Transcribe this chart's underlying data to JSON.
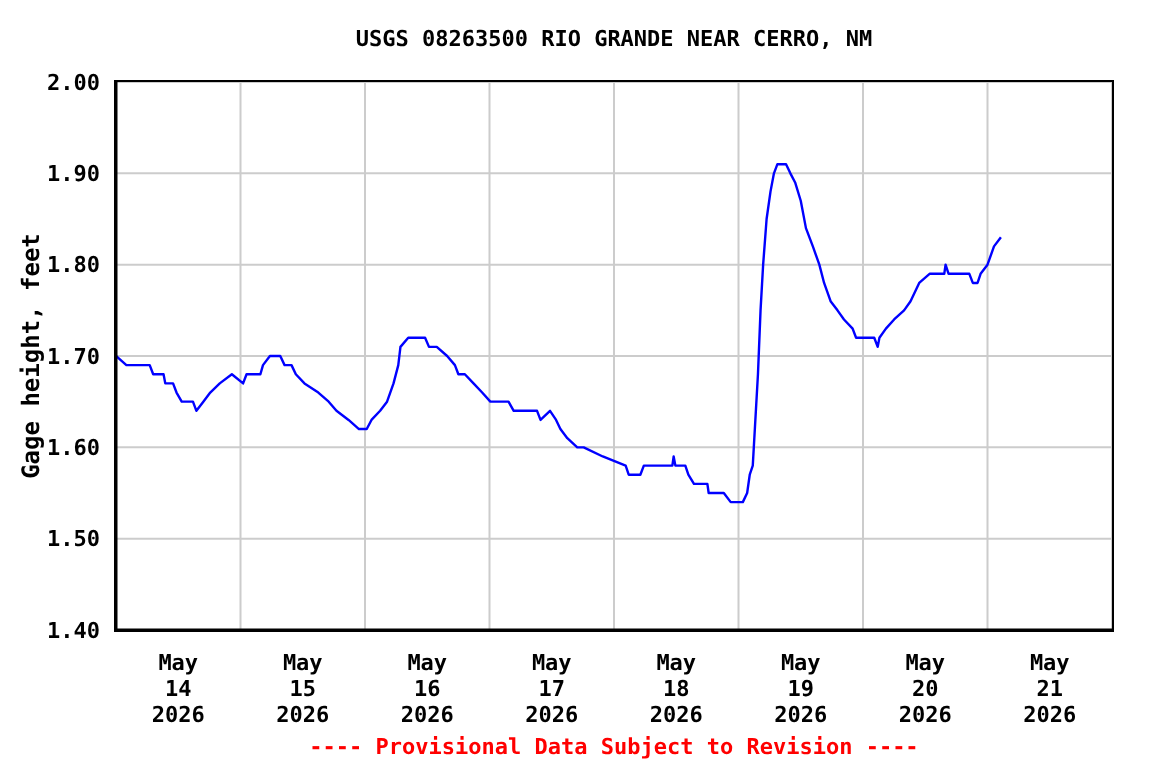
{
  "chart_data": {
    "type": "line",
    "title": "USGS 08263500 RIO GRANDE NEAR CERRO, NM",
    "ylabel": "Gage height, feet",
    "annotations": [
      "---- Provisional Data Subject to Revision ----"
    ],
    "xlim": [
      "2026-05-14T00:00",
      "2026-05-22T00:00"
    ],
    "xticks": [
      {
        "value": "2026-05-14T00:00",
        "label": null
      },
      {
        "value": "2026-05-14T12:00",
        "label": "May\n14\n2026"
      },
      {
        "value": "2026-05-15T00:00",
        "label": null
      },
      {
        "value": "2026-05-15T12:00",
        "label": "May\n15\n2026"
      },
      {
        "value": "2026-05-16T00:00",
        "label": null
      },
      {
        "value": "2026-05-16T12:00",
        "label": "May\n16\n2026"
      },
      {
        "value": "2026-05-17T00:00",
        "label": null
      },
      {
        "value": "2026-05-17T12:00",
        "label": "May\n17\n2026"
      },
      {
        "value": "2026-05-18T00:00",
        "label": null
      },
      {
        "value": "2026-05-18T12:00",
        "label": "May\n18\n2026"
      },
      {
        "value": "2026-05-19T00:00",
        "label": null
      },
      {
        "value": "2026-05-19T12:00",
        "label": "May\n19\n2026"
      },
      {
        "value": "2026-05-20T00:00",
        "label": null
      },
      {
        "value": "2026-05-20T12:00",
        "label": "May\n20\n2026"
      },
      {
        "value": "2026-05-21T00:00",
        "label": null
      },
      {
        "value": "2026-05-21T12:00",
        "label": "May\n21\n2026"
      },
      {
        "value": "2026-05-22T00:00",
        "label": null
      }
    ],
    "ylim": [
      1.4,
      2.0
    ],
    "yticks": [
      {
        "value": 1.4,
        "label": "1.40"
      },
      {
        "value": 1.5,
        "label": "1.50"
      },
      {
        "value": 1.6,
        "label": "1.60"
      },
      {
        "value": 1.7,
        "label": "1.70"
      },
      {
        "value": 1.8,
        "label": "1.80"
      },
      {
        "value": 1.9,
        "label": "1.90"
      },
      {
        "value": 2.0,
        "label": "2.00"
      }
    ],
    "grid": true,
    "marker": "none",
    "line_style": "solid",
    "series": [
      {
        "color": "#0000ff",
        "x": [
          "2026-05-14T00:00",
          "2026-05-14T02:00",
          "2026-05-14T06:30",
          "2026-05-14T07:10",
          "2026-05-14T09:10",
          "2026-05-14T09:30",
          "2026-05-14T11:00",
          "2026-05-14T11:40",
          "2026-05-14T12:40",
          "2026-05-14T14:50",
          "2026-05-14T15:30",
          "2026-05-14T16:50",
          "2026-05-14T18:10",
          "2026-05-14T20:00",
          "2026-05-14T22:20",
          "2026-05-15T00:30",
          "2026-05-15T01:10",
          "2026-05-15T03:50",
          "2026-05-15T04:20",
          "2026-05-15T05:40",
          "2026-05-15T07:40",
          "2026-05-15T08:30",
          "2026-05-15T09:50",
          "2026-05-15T10:40",
          "2026-05-15T12:20",
          "2026-05-15T15:00",
          "2026-05-15T17:00",
          "2026-05-15T18:30",
          "2026-05-15T20:50",
          "2026-05-15T22:50",
          "2026-05-16T00:20",
          "2026-05-16T01:15",
          "2026-05-16T02:55",
          "2026-05-16T04:15",
          "2026-05-16T05:30",
          "2026-05-16T06:25",
          "2026-05-16T06:50",
          "2026-05-16T08:20",
          "2026-05-16T11:35",
          "2026-05-16T12:20",
          "2026-05-16T13:50",
          "2026-05-16T15:50",
          "2026-05-16T17:20",
          "2026-05-16T18:00",
          "2026-05-16T19:15",
          "2026-05-16T20:55",
          "2026-05-16T22:35",
          "2026-05-17T00:10",
          "2026-05-17T03:40",
          "2026-05-17T04:40",
          "2026-05-17T09:10",
          "2026-05-17T09:50",
          "2026-05-17T11:40",
          "2026-05-17T12:50",
          "2026-05-17T13:40",
          "2026-05-17T15:00",
          "2026-05-17T16:55",
          "2026-05-17T18:10",
          "2026-05-17T21:50",
          "2026-05-18T02:15",
          "2026-05-18T02:50",
          "2026-05-18T05:05",
          "2026-05-18T05:45",
          "2026-05-18T11:15",
          "2026-05-18T11:30",
          "2026-05-18T11:50",
          "2026-05-18T13:45",
          "2026-05-18T14:20",
          "2026-05-18T15:25",
          "2026-05-18T18:00",
          "2026-05-18T18:15",
          "2026-05-18T21:10",
          "2026-05-18T22:30",
          "2026-05-19T00:50",
          "2026-05-19T01:40",
          "2026-05-19T02:10",
          "2026-05-19T02:45",
          "2026-05-19T03:15",
          "2026-05-19T03:45",
          "2026-05-19T04:15",
          "2026-05-19T04:45",
          "2026-05-19T05:25",
          "2026-05-19T06:10",
          "2026-05-19T06:50",
          "2026-05-19T07:30",
          "2026-05-19T09:10",
          "2026-05-19T10:00",
          "2026-05-19T10:55",
          "2026-05-19T12:00",
          "2026-05-19T13:00",
          "2026-05-19T14:20",
          "2026-05-19T15:35",
          "2026-05-19T16:30",
          "2026-05-19T17:45",
          "2026-05-19T19:05",
          "2026-05-19T20:20",
          "2026-05-19T22:00",
          "2026-05-19T22:40",
          "2026-05-20T02:10",
          "2026-05-20T02:50",
          "2026-05-20T03:10",
          "2026-05-20T04:25",
          "2026-05-20T06:00",
          "2026-05-20T07:55",
          "2026-05-20T09:10",
          "2026-05-20T10:50",
          "2026-05-20T12:50",
          "2026-05-20T15:40",
          "2026-05-20T15:55",
          "2026-05-20T16:30",
          "2026-05-20T20:30",
          "2026-05-20T21:10",
          "2026-05-20T22:05",
          "2026-05-20T22:40",
          "2026-05-21T00:00",
          "2026-05-21T01:15",
          "2026-05-21T02:35"
        ],
        "values": [
          1.7,
          1.69,
          1.69,
          1.68,
          1.68,
          1.67,
          1.67,
          1.66,
          1.65,
          1.65,
          1.64,
          1.65,
          1.66,
          1.67,
          1.68,
          1.67,
          1.68,
          1.68,
          1.69,
          1.7,
          1.7,
          1.69,
          1.69,
          1.68,
          1.67,
          1.66,
          1.65,
          1.64,
          1.63,
          1.62,
          1.62,
          1.63,
          1.64,
          1.65,
          1.67,
          1.69,
          1.71,
          1.72,
          1.72,
          1.71,
          1.71,
          1.7,
          1.69,
          1.68,
          1.68,
          1.67,
          1.66,
          1.65,
          1.65,
          1.64,
          1.64,
          1.63,
          1.64,
          1.63,
          1.62,
          1.61,
          1.6,
          1.6,
          1.59,
          1.58,
          1.57,
          1.57,
          1.58,
          1.58,
          1.59,
          1.58,
          1.58,
          1.57,
          1.56,
          1.56,
          1.55,
          1.55,
          1.54,
          1.54,
          1.55,
          1.57,
          1.58,
          1.63,
          1.68,
          1.75,
          1.8,
          1.85,
          1.88,
          1.9,
          1.91,
          1.91,
          1.9,
          1.89,
          1.87,
          1.84,
          1.82,
          1.8,
          1.78,
          1.76,
          1.75,
          1.74,
          1.73,
          1.72,
          1.72,
          1.71,
          1.72,
          1.73,
          1.74,
          1.75,
          1.76,
          1.78,
          1.79,
          1.79,
          1.8,
          1.79,
          1.79,
          1.78,
          1.78,
          1.79,
          1.8,
          1.82,
          1.83
        ]
      }
    ]
  }
}
